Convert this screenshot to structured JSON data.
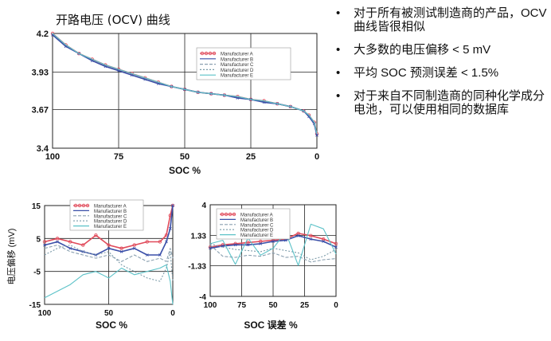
{
  "bullets": [
    "对于所有被测试制造商的产品，OCV 曲线皆很相似",
    "大多数的电压偏移 < 5 mV",
    "平均 SOC 预测误差 < 1.5%",
    "对于来自不同制造商的同种化学成分电池，可以使用相同的数据库"
  ],
  "colors": {
    "A": "#e04a5a",
    "B": "#3a4fa8",
    "C": "#8aa0b0",
    "D": "#7a9aa8",
    "E": "#5cc2c8"
  },
  "chart_data": [
    {
      "type": "line",
      "title": "开路电压 (OCV) 曲线",
      "xlabel": "SOC  %",
      "ylabel": "",
      "xlim": [
        100,
        0
      ],
      "ylim": [
        3.4,
        4.2
      ],
      "xticks": [
        "100",
        "75",
        "50",
        "25",
        "0"
      ],
      "yticks": [
        "4.2",
        "3.93",
        "3.67",
        "3.4"
      ],
      "legend": "top-right",
      "x": [
        100,
        95,
        90,
        85,
        80,
        75,
        70,
        65,
        60,
        55,
        50,
        45,
        40,
        35,
        30,
        25,
        20,
        15,
        10,
        5,
        3,
        1,
        0
      ],
      "series": [
        {
          "name": "Manufacturer A",
          "values": [
            4.2,
            4.12,
            4.06,
            4.02,
            3.98,
            3.95,
            3.92,
            3.89,
            3.86,
            3.83,
            3.81,
            3.79,
            3.78,
            3.77,
            3.76,
            3.74,
            3.73,
            3.71,
            3.69,
            3.66,
            3.63,
            3.58,
            3.5
          ]
        },
        {
          "name": "Manufacturer B",
          "values": [
            4.19,
            4.11,
            4.06,
            4.01,
            3.97,
            3.94,
            3.91,
            3.88,
            3.85,
            3.83,
            3.81,
            3.79,
            3.78,
            3.77,
            3.75,
            3.74,
            3.72,
            3.71,
            3.69,
            3.66,
            3.62,
            3.57,
            3.49
          ]
        },
        {
          "name": "Manufacturer C",
          "values": [
            4.2,
            4.12,
            4.06,
            4.02,
            3.98,
            3.95,
            3.92,
            3.89,
            3.86,
            3.83,
            3.81,
            3.79,
            3.78,
            3.77,
            3.76,
            3.74,
            3.73,
            3.71,
            3.69,
            3.66,
            3.63,
            3.58,
            3.5
          ]
        },
        {
          "name": "Manufacturer D",
          "values": [
            4.2,
            4.12,
            4.06,
            4.02,
            3.98,
            3.95,
            3.92,
            3.89,
            3.86,
            3.83,
            3.81,
            3.79,
            3.78,
            3.77,
            3.76,
            3.74,
            3.73,
            3.71,
            3.69,
            3.66,
            3.63,
            3.58,
            3.5
          ]
        },
        {
          "name": "Manufacturer E",
          "values": [
            4.2,
            4.12,
            4.06,
            4.02,
            3.98,
            3.95,
            3.92,
            3.89,
            3.86,
            3.83,
            3.81,
            3.79,
            3.78,
            3.77,
            3.76,
            3.74,
            3.73,
            3.71,
            3.69,
            3.66,
            3.63,
            3.58,
            3.5
          ]
        }
      ]
    },
    {
      "type": "line",
      "title": "",
      "xlabel": "SOC %",
      "ylabel": "电压偏移 (mV)",
      "xlim": [
        100,
        0
      ],
      "ylim": [
        -15,
        15
      ],
      "xticks": [
        "100",
        "50",
        "0"
      ],
      "yticks": [
        "15",
        "5",
        "-5",
        "-15"
      ],
      "legend": "top-right",
      "x": [
        100,
        90,
        80,
        70,
        60,
        50,
        40,
        30,
        20,
        10,
        5,
        2,
        0
      ],
      "series": [
        {
          "name": "Manufacturer A",
          "values": [
            4,
            5,
            4,
            3,
            6,
            3,
            2,
            3,
            4,
            4,
            6,
            12,
            15
          ]
        },
        {
          "name": "Manufacturer B",
          "values": [
            3,
            4,
            2,
            1,
            0,
            2,
            1,
            2,
            0,
            0,
            4,
            8,
            15
          ]
        },
        {
          "name": "Manufacturer C",
          "values": [
            2,
            3,
            1,
            0,
            -1,
            0,
            -2,
            0,
            -2,
            -1,
            -2,
            2,
            -1
          ]
        },
        {
          "name": "Manufacturer D",
          "values": [
            0,
            2,
            3,
            1,
            0,
            1,
            -3,
            -5,
            -7,
            -8,
            -4,
            1,
            -8
          ]
        },
        {
          "name": "Manufacturer E",
          "values": [
            -13,
            -11,
            -9,
            -6,
            -5,
            -7,
            -4,
            -6,
            -5,
            -4,
            -3,
            -8,
            -15
          ]
        }
      ]
    },
    {
      "type": "line",
      "title": "",
      "xlabel": "SOC 误差 %",
      "ylabel": "",
      "xlim": [
        100,
        0
      ],
      "ylim": [
        -4,
        4
      ],
      "xticks": [
        "100",
        "75",
        "50",
        "25",
        "0"
      ],
      "yticks": [
        "4",
        "1.33",
        "-1.33",
        "-4"
      ],
      "legend": "top-right",
      "x": [
        100,
        90,
        80,
        70,
        60,
        50,
        40,
        30,
        20,
        10,
        0
      ],
      "series": [
        {
          "name": "Manufacturer A",
          "values": [
            0.3,
            0.5,
            0.6,
            0.7,
            0.8,
            0.9,
            1.0,
            1.5,
            1.3,
            1.0,
            0.6
          ]
        },
        {
          "name": "Manufacturer B",
          "values": [
            0.2,
            0.4,
            0.5,
            0.5,
            0.6,
            0.8,
            0.9,
            1.3,
            1.0,
            0.8,
            0.3
          ]
        },
        {
          "name": "Manufacturer C",
          "values": [
            0.5,
            -0.5,
            -0.6,
            -0.4,
            -0.5,
            -0.2,
            -0.6,
            -0.5,
            -1.0,
            -0.8,
            -0.7
          ]
        },
        {
          "name": "Manufacturer D",
          "values": [
            0.6,
            0.3,
            0.1,
            0.0,
            -0.1,
            0.2,
            0.0,
            -0.2,
            -0.8,
            -0.5,
            0.1
          ]
        },
        {
          "name": "Manufacturer E",
          "values": [
            0.6,
            0.9,
            -1.2,
            1.1,
            -0.4,
            0.2,
            1.6,
            -1.3,
            2.3,
            1.9,
            -0.3
          ]
        }
      ]
    }
  ]
}
